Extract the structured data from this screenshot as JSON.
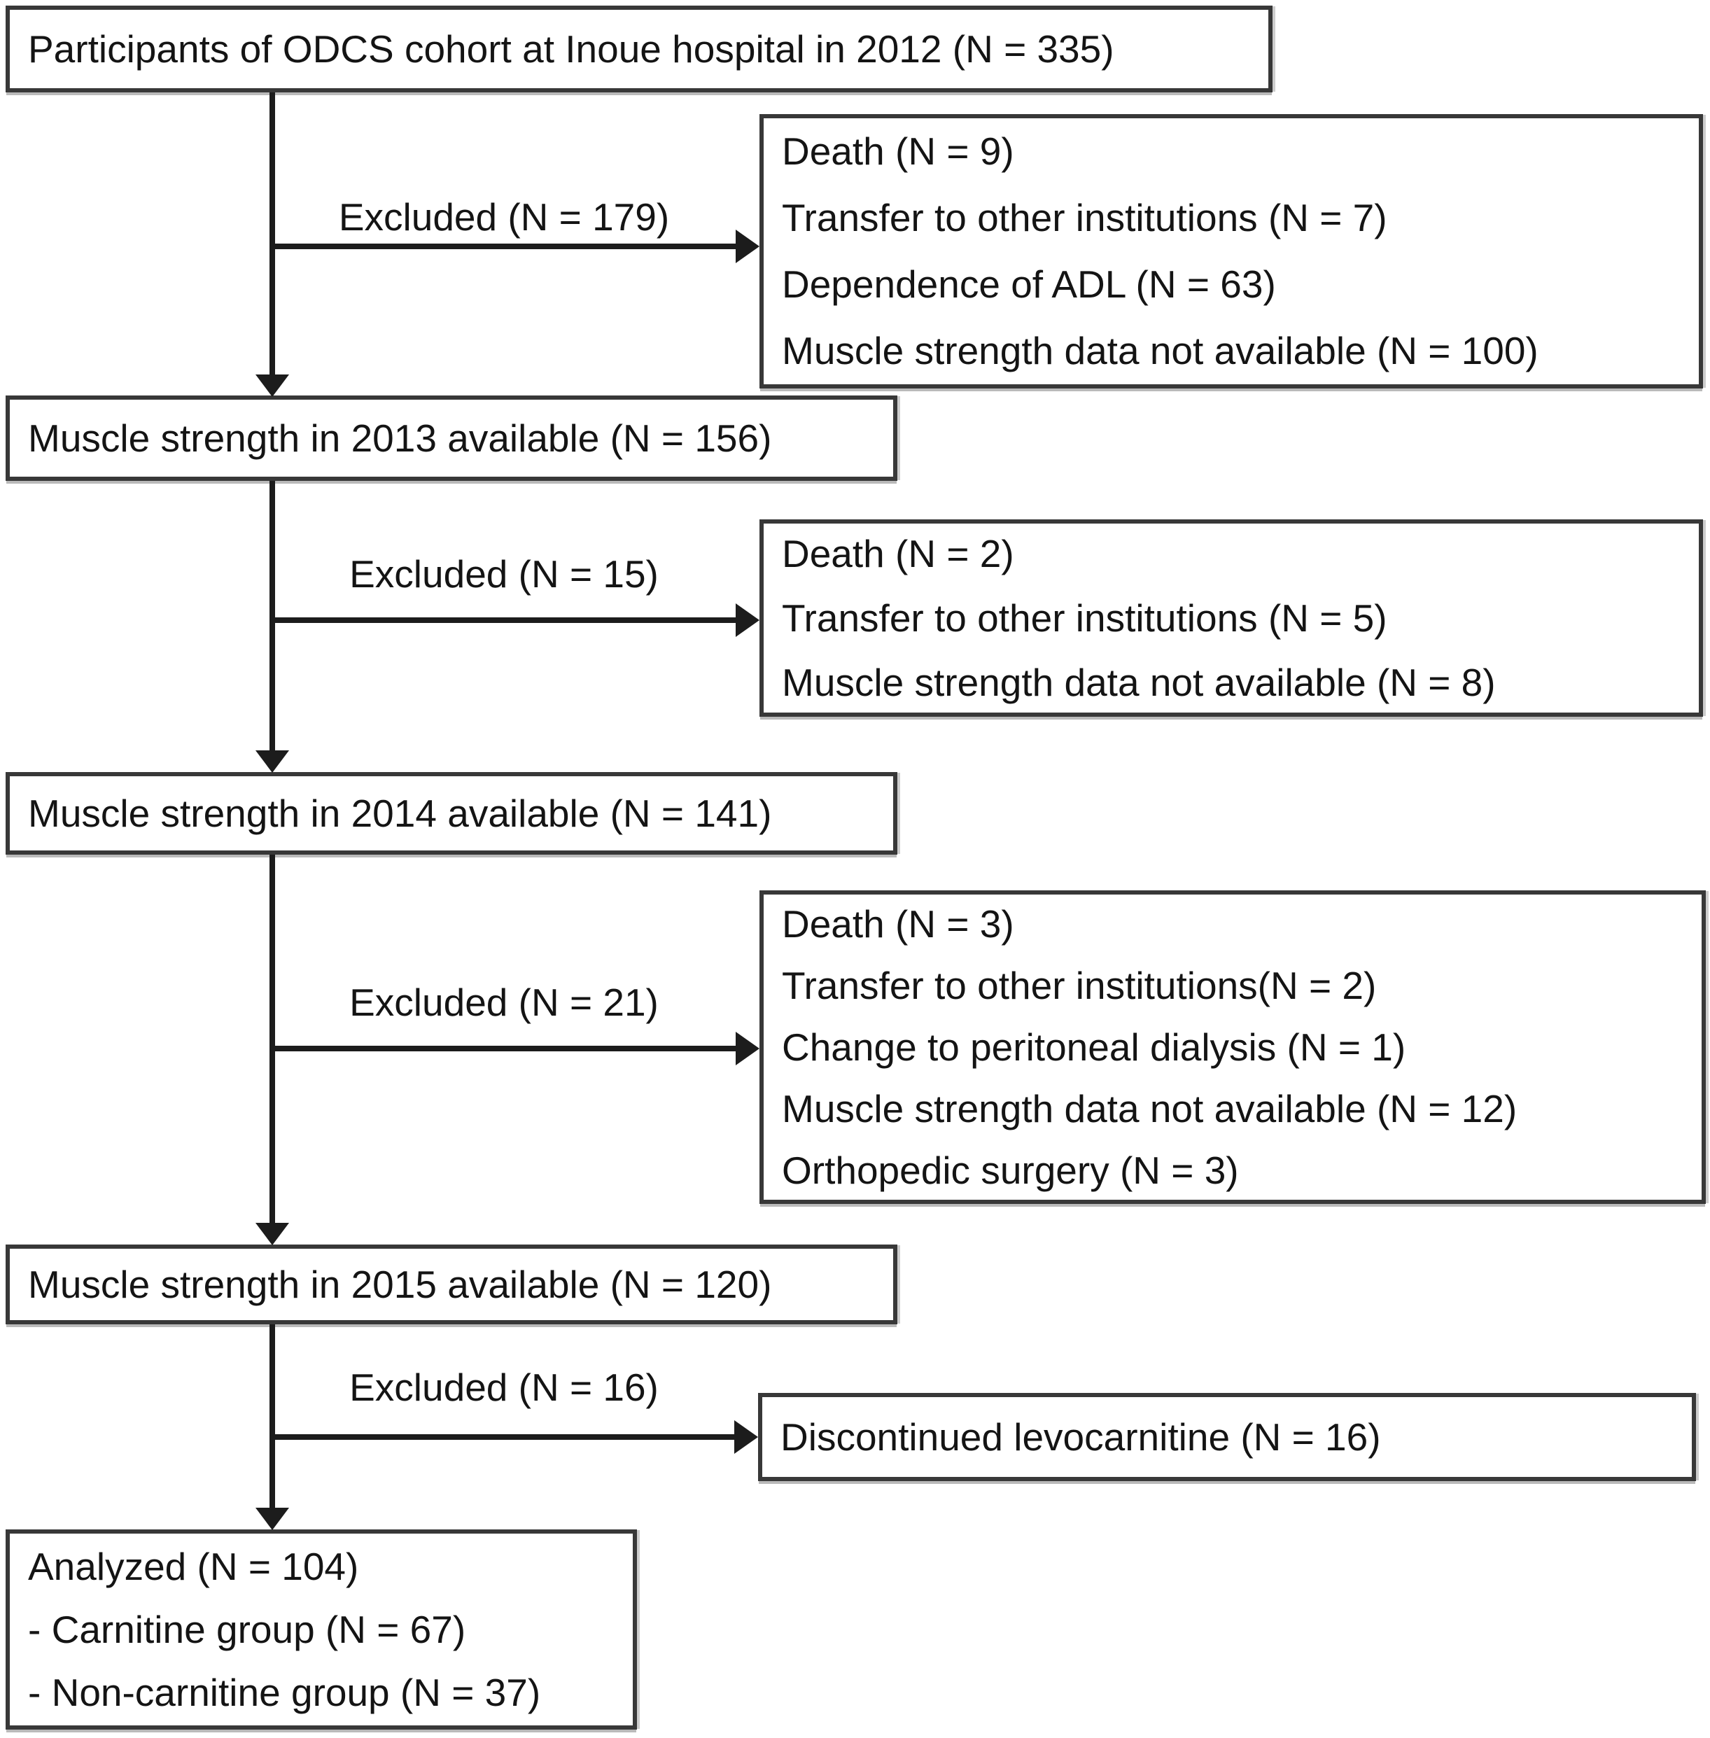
{
  "figure": {
    "colors": {
      "background": "#ffffff",
      "box_border": "#383838",
      "arrow": "#1c1c1c",
      "text": "#141414"
    },
    "boxes": {
      "cohort2012": "Participants of ODCS cohort at Inoue hospital in 2012 (N = 335)",
      "ms2013": "Muscle strength in 2013 available (N = 156)",
      "ms2014": "Muscle strength in 2014 available (N = 141)",
      "ms2015": "Muscle strength in 2015 available (N = 120)",
      "analyzed": {
        "line1": "Analyzed (N = 104)",
        "line2": "- Carnitine group (N = 67)",
        "line3": "- Non-carnitine group (N = 37)"
      }
    },
    "exclusions": [
      {
        "label": "Excluded (N = 179)",
        "reasons": [
          "Death (N = 9)",
          "Transfer to other institutions (N = 7)",
          "Dependence of ADL (N = 63)",
          "Muscle strength data not available (N = 100)"
        ]
      },
      {
        "label": "Excluded (N = 15)",
        "reasons": [
          "Death (N = 2)",
          "Transfer to other institutions (N = 5)",
          "Muscle strength data not available (N = 8)"
        ]
      },
      {
        "label": "Excluded (N = 21)",
        "reasons": [
          "Death (N = 3)",
          "Transfer to other institutions(N = 2)",
          "Change to peritoneal dialysis (N = 1)",
          "Muscle strength data not available (N = 12)",
          "Orthopedic surgery (N = 3)"
        ]
      },
      {
        "label": "Excluded (N = 16)",
        "reasons": [
          "Discontinued levocarnitine (N = 16)"
        ]
      }
    ]
  }
}
